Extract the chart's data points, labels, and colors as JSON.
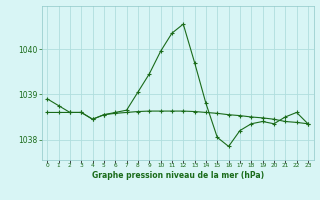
{
  "title": "Graphe pression niveau de la mer (hPa)",
  "x_values": [
    0,
    1,
    2,
    3,
    4,
    5,
    6,
    7,
    8,
    9,
    10,
    11,
    12,
    13,
    14,
    15,
    16,
    17,
    18,
    19,
    20,
    21,
    22,
    23
  ],
  "y_series1": [
    1038.9,
    1038.75,
    1038.6,
    1038.6,
    1038.45,
    1038.55,
    1038.6,
    1038.65,
    1039.05,
    1039.45,
    1039.95,
    1040.35,
    1040.55,
    1039.7,
    1038.8,
    1038.05,
    1037.85,
    1038.2,
    1038.35,
    1038.4,
    1038.35,
    1038.5,
    1038.6,
    1038.35
  ],
  "y_series2": [
    1038.6,
    1038.6,
    1038.6,
    1038.6,
    1038.45,
    1038.55,
    1038.58,
    1038.6,
    1038.62,
    1038.63,
    1038.63,
    1038.63,
    1038.63,
    1038.62,
    1038.6,
    1038.58,
    1038.55,
    1038.53,
    1038.5,
    1038.48,
    1038.45,
    1038.4,
    1038.38,
    1038.35
  ],
  "line_color": "#1a6b1a",
  "bg_color": "#d8f5f5",
  "grid_color": "#b0dede",
  "text_color": "#1a6b1a",
  "ylabel_ticks": [
    1038,
    1039,
    1040
  ],
  "ylim": [
    1037.55,
    1040.95
  ],
  "xlim": [
    -0.5,
    23.5
  ]
}
